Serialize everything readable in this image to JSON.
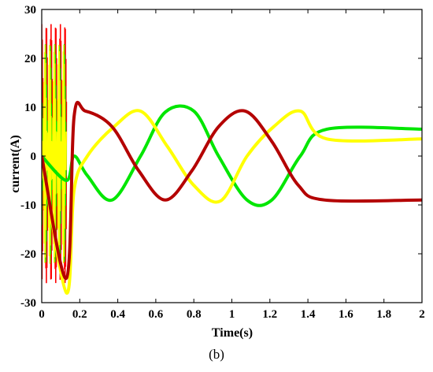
{
  "chart_data": {
    "type": "line",
    "xlabel": "Time(s)",
    "ylabel": "current(A)",
    "xlim": [
      0,
      2
    ],
    "ylim": [
      -30,
      30
    ],
    "x_ticks": [
      0,
      0.2,
      0.4,
      0.6,
      0.8,
      1,
      1.2,
      1.4,
      1.6,
      1.8,
      2
    ],
    "x_tick_labels": [
      "0",
      "0.2",
      "0.4",
      "0.6",
      "0.8",
      "1",
      "1.2",
      "1.4",
      "1.6",
      "1.8",
      "2"
    ],
    "y_ticks": [
      -30,
      -20,
      -10,
      0,
      10,
      20,
      30
    ],
    "y_tick_labels": [
      "-30",
      "-20",
      "-10",
      "0",
      "10",
      "20",
      "30"
    ],
    "grid": false,
    "series": [
      {
        "color": "#00e600",
        "x": [
          0.0,
          0.13,
          0.17,
          0.24,
          0.37,
          0.52,
          0.65,
          0.8,
          0.93,
          1.08,
          1.21,
          1.36,
          1.5,
          2.0
        ],
        "values": [
          0,
          -5,
          0,
          -4,
          -9,
          0,
          9,
          9.2,
          0,
          -9,
          -9,
          0,
          5.5,
          5.5
        ]
      },
      {
        "color": "#ffff00",
        "x": [
          0.0,
          0.13,
          0.17,
          0.24,
          0.38,
          0.52,
          0.66,
          0.8,
          0.94,
          1.08,
          1.22,
          1.36,
          1.5,
          2.0
        ],
        "values": [
          0,
          -28,
          -7,
          0,
          6,
          9.2,
          2,
          -6,
          -9.2,
          0,
          6,
          9.2,
          3.5,
          3.5
        ]
      },
      {
        "color": "#b40000",
        "x": [
          0.0,
          0.13,
          0.17,
          0.23,
          0.37,
          0.51,
          0.65,
          0.79,
          0.93,
          1.07,
          1.21,
          1.35,
          1.49,
          2.0
        ],
        "values": [
          0,
          -25,
          8,
          9.2,
          6,
          -3,
          -9,
          -3,
          6,
          9.2,
          3,
          -6,
          -9,
          -9
        ]
      }
    ],
    "transient": {
      "x_range": [
        0.0,
        0.13
      ],
      "y_range": [
        -26,
        27
      ],
      "colors": [
        "#ff0000",
        "#00e600",
        "#ffff00"
      ]
    }
  },
  "caption": "(b)"
}
